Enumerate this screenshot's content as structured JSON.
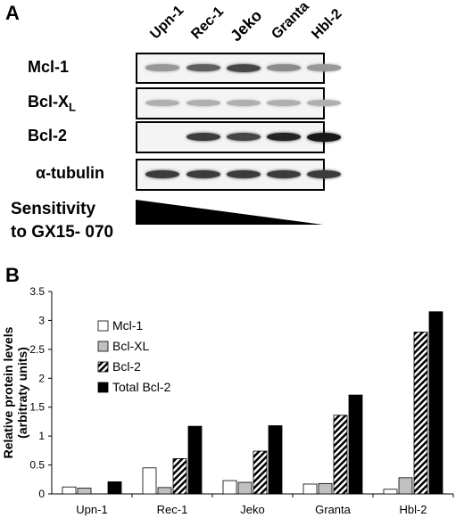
{
  "panel_a": {
    "letter": "A",
    "lanes": [
      "Upn-1",
      "Rec-1",
      "Jeko",
      "Granta",
      "Hbl-2"
    ],
    "rows": [
      {
        "name": "Mcl-1",
        "sub": "",
        "intensity": [
          0.45,
          0.7,
          0.8,
          0.5,
          0.45
        ]
      },
      {
        "name": "Bcl-X",
        "sub": "L",
        "intensity": [
          0.35,
          0.35,
          0.35,
          0.35,
          0.35
        ]
      },
      {
        "name": "Bcl-2",
        "sub": "",
        "intensity": [
          0,
          0.85,
          0.8,
          0.95,
          1.0
        ]
      },
      {
        "name": "α-tubulin",
        "sub": "",
        "intensity": [
          0.85,
          0.85,
          0.85,
          0.85,
          0.85
        ]
      }
    ],
    "sensitivity_line1": "Sensitivity",
    "sensitivity_line2": "to GX15- 070"
  },
  "panel_b_letter": "B",
  "chart_data": {
    "type": "bar",
    "categories": [
      "Upn-1",
      "Rec-1",
      "Jeko",
      "Granta",
      "Hbl-2"
    ],
    "series": [
      {
        "name": "Mcl-1",
        "values": [
          0.12,
          0.45,
          0.23,
          0.17,
          0.08
        ],
        "fill": "white"
      },
      {
        "name": "Bcl-XL",
        "values": [
          0.1,
          0.11,
          0.2,
          0.18,
          0.28
        ],
        "fill": "gray"
      },
      {
        "name": "Bcl-2",
        "values": [
          0,
          0.61,
          0.74,
          1.36,
          2.8
        ],
        "fill": "hatch"
      },
      {
        "name": "Total Bcl-2",
        "values": [
          0.21,
          1.17,
          1.18,
          1.71,
          3.15
        ],
        "fill": "black"
      }
    ],
    "ylabel_line1": "Relative protein levels",
    "ylabel_line2": "(arbitraty units)",
    "ylim": [
      0,
      3.5
    ],
    "yticks": [
      "0",
      "0.5",
      "1",
      "1.5",
      "2",
      "2.5",
      "3",
      "3.5"
    ],
    "legend_position": "left",
    "grid": false
  },
  "colors": {
    "gray_bar": "#c0c0c0",
    "black": "#000000",
    "white": "#ffffff"
  }
}
